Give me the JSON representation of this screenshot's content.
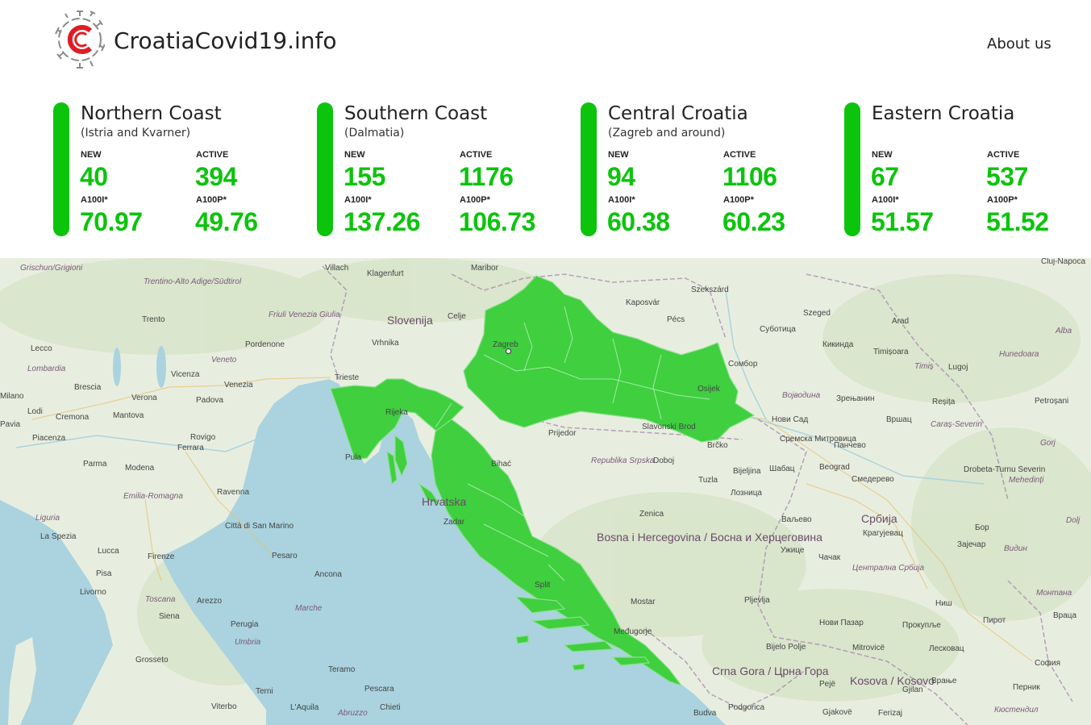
{
  "header": {
    "brand": "CroatiaCovid19.info",
    "about_label": "About us",
    "logo_icon": "virus-c-logo-icon",
    "colors": {
      "logo_accent": "#e01b24",
      "logo_gray": "#888888"
    }
  },
  "cards": [
    {
      "title": "Northern Coast",
      "subtitle": "(Istria and Kvarner)",
      "new_label": "NEW",
      "new_value": "40",
      "active_label": "ACTIVE",
      "active_value": "394",
      "a100i_label": "A100I*",
      "a100i_value": "70.97",
      "a100p_label": "A100P*",
      "a100p_value": "49.76"
    },
    {
      "title": "Southern Coast",
      "subtitle": "(Dalmatia)",
      "new_label": "NEW",
      "new_value": "155",
      "active_label": "ACTIVE",
      "active_value": "1176",
      "a100i_label": "A100I*",
      "a100i_value": "137.26",
      "a100p_label": "A100P*",
      "a100p_value": "106.73"
    },
    {
      "title": "Central Croatia",
      "subtitle": "(Zagreb and around)",
      "new_label": "NEW",
      "new_value": "94",
      "active_label": "ACTIVE",
      "active_value": "1106",
      "a100i_label": "A100I*",
      "a100i_value": "60.38",
      "a100p_label": "A100P*",
      "a100p_value": "60.23"
    },
    {
      "title": "Eastern Croatia",
      "subtitle": "",
      "new_label": "NEW",
      "new_value": "67",
      "active_label": "ACTIVE",
      "active_value": "537",
      "a100i_label": "A100I*",
      "a100i_value": "51.57",
      "a100p_label": "A100P*",
      "a100p_value": "51.52"
    }
  ],
  "status_color": "#0cc40c",
  "map": {
    "colors": {
      "land": "#e8eedf",
      "sea": "#aad3df",
      "croatia_fill": "#3fcf3f",
      "croatia_stroke": "#8be08b"
    },
    "places": [
      "Trento",
      "Trentino-Alto Adige/Südtirol",
      "Friuli Venezia Giulia",
      "Pordenone",
      "Veneto",
      "Vicenza",
      "Venezia",
      "Lecco",
      "Lombardia",
      "Milano",
      "Brescia",
      "Padova",
      "Lodi",
      "Pavia",
      "Cremona",
      "Mantova",
      "Verona",
      "Piacenza",
      "Rovigo",
      "Ferrara",
      "Parma",
      "Modena",
      "Emilia-Romagna",
      "Ravenna",
      "Liguria",
      "La Spezia",
      "Città di San Marino",
      "Lucca",
      "Pisa",
      "Firenze",
      "Pesaro",
      "Ancona",
      "Livorno",
      "Toscana",
      "Arezzo",
      "Siena",
      "Marche",
      "Perugia",
      "Umbria",
      "Grosseto",
      "Teramo",
      "Terni",
      "Pescara",
      "Viterbo",
      "L'Aquila",
      "Abruzzo",
      "Chieti",
      "Villach",
      "Klagenfurt",
      "Maribor",
      "Slovenija",
      "Celje",
      "Vrhnika",
      "Trieste",
      "Rijeka",
      "Pula",
      "Zagreb",
      "Osijek",
      "Slavonski Brod",
      "Brčko",
      "Prijedor",
      "Bihać",
      "Hrvatska",
      "Zadar",
      "Split",
      "Mostar",
      "Međugorje",
      "Bijelo Polje",
      "Budva",
      "Podgorica",
      "Crna Gora / Црна Гора",
      "Kaposvár",
      "Pécs",
      "Szekszárd",
      "Szeged",
      "Arad",
      "Суботица",
      "Кикинда",
      "Timișoara",
      "Timiș",
      "Lugoj",
      "Сомбор",
      "Војводина",
      "Зрењанин",
      "Нови Сад",
      "Вршац",
      "Caraș-Severin",
      "Reșița",
      "Petroșani",
      "Сремска Митровица",
      "Панчево",
      "Beograd",
      "Смедерево",
      "Drobeta-Turnu Severin",
      "Mehedinți",
      "Bijeljina",
      "Шабац",
      "Лозница",
      "Tuzla",
      "Zenica",
      "Doboj",
      "Republika Srpska",
      "Bosna i Hercegovina / Босна и Херцеговина",
      "Србија",
      "Ваљево",
      "Крагујевац",
      "Бор",
      "Зајечар",
      "Видин",
      "Ужице",
      "Чачак",
      "Централна Србија",
      "Pljevlja",
      "Ниш",
      "Пирот",
      "Нови Пазар",
      "Прокупље",
      "Лесковац",
      "Mitrovicë",
      "Pejë",
      "Kosova / Kosovo",
      "Gjilan",
      "Врање",
      "София",
      "Перник",
      "Gjakovë",
      "Ferizaj",
      "Кюстендил",
      "Cluj-Napoca",
      "Alba",
      "Hunedoara",
      "Gorj",
      "Dolj",
      "Монтана",
      "Враца",
      "Grischun/Grigioni",
      "Vicenza"
    ]
  }
}
